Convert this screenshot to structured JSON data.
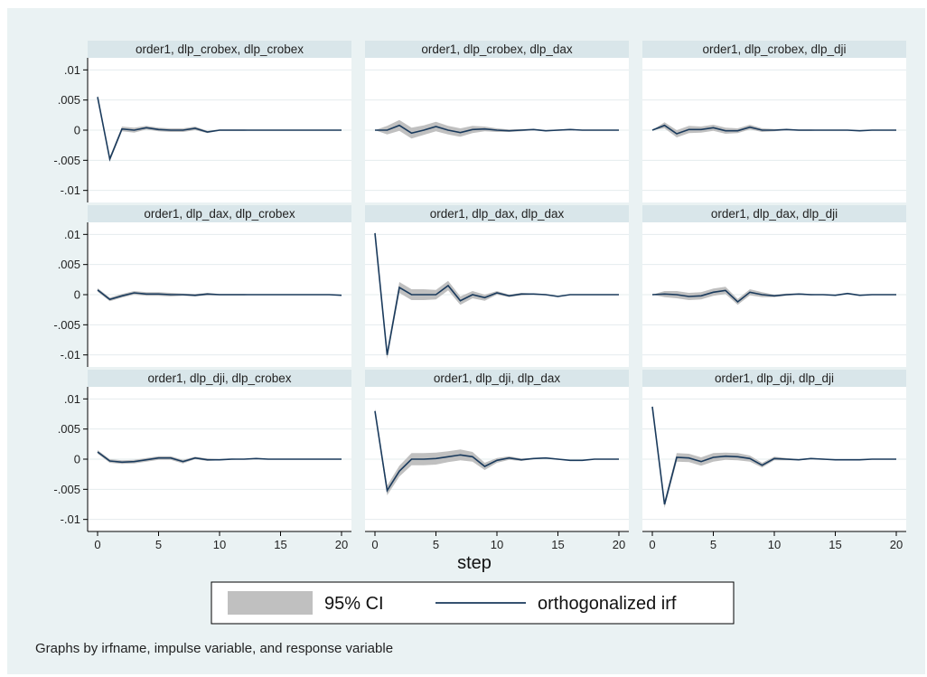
{
  "chart_data": {
    "type": "line",
    "layout": "3x3 panels",
    "x_axis_title": "step",
    "x_ticks": [
      0,
      5,
      10,
      15,
      20
    ],
    "xlim": [
      0,
      20
    ],
    "y_ticks": [
      0.01,
      0.005,
      0,
      -0.005,
      -0.01
    ],
    "y_tick_labels": [
      ".01",
      ".005",
      "0",
      "-.005",
      "-.01"
    ],
    "ylim": [
      -0.012,
      0.012
    ],
    "legend": {
      "placement": "bottom",
      "items": [
        "95% CI",
        "orthogonalized irf"
      ]
    },
    "note": "Graphs by irfname, impulse variable, and response variable",
    "colors": {
      "background": "#eaf2f3",
      "panel_header": "#d9e6ea",
      "line": "#1a3a5c",
      "ci": "#c0c0c0",
      "grid": "#e4ecee"
    },
    "panels": [
      {
        "title": "order1, dlp_crobex, dlp_crobex",
        "irf": [
          0.0055,
          -0.0048,
          0.0002,
          0.0,
          0.0004,
          0.0001,
          0.0,
          0.0,
          0.0003,
          -0.0003,
          0.0,
          0,
          0,
          0,
          0,
          0,
          0,
          0,
          0,
          0,
          0
        ],
        "ci_hw": [
          0.0003,
          0.0004,
          0.0004,
          0.0004,
          0.0003,
          0.0003,
          0.0003,
          0.0003,
          0.0003,
          0.0002,
          0.0001,
          0.0001,
          0.0001,
          0,
          0,
          0,
          0,
          0,
          0,
          0,
          0
        ]
      },
      {
        "title": "order1, dlp_crobex, dlp_dax",
        "irf": [
          0.0,
          0.0,
          0.0008,
          -0.0005,
          0.0,
          0.0006,
          0.0,
          -0.0004,
          0.0001,
          0.0002,
          0.0,
          -0.0001,
          0.0,
          0.0001,
          -0.0001,
          0.0,
          0.0001,
          0.0,
          0.0,
          0.0,
          0.0
        ],
        "ci_hw": [
          0.0,
          0.0007,
          0.0009,
          0.0009,
          0.0008,
          0.0008,
          0.0007,
          0.0007,
          0.0006,
          0.0004,
          0.0003,
          0.0002,
          0.0002,
          0.0001,
          0.0001,
          0.0001,
          0.0001,
          0,
          0,
          0,
          0
        ]
      },
      {
        "title": "order1, dlp_crobex, dlp_dji",
        "irf": [
          0.0,
          0.0008,
          -0.0006,
          0.0001,
          0.0001,
          0.0004,
          -0.0001,
          -0.0001,
          0.0005,
          0.0,
          0.0,
          0.0001,
          0.0,
          0.0,
          0.0,
          0.0,
          0.0,
          -0.0001,
          0.0,
          0.0,
          0.0
        ],
        "ci_hw": [
          0.0,
          0.0005,
          0.0006,
          0.0006,
          0.0005,
          0.0005,
          0.0005,
          0.0004,
          0.0004,
          0.0003,
          0.0002,
          0.0001,
          0.0001,
          0.0001,
          0,
          0,
          0,
          0,
          0,
          0,
          0
        ]
      },
      {
        "title": "order1, dlp_dax, dlp_crobex",
        "irf": [
          0.0008,
          -0.0008,
          -0.0002,
          0.0003,
          0.0001,
          0.0001,
          0.0,
          0.0,
          -0.0001,
          0.0001,
          0.0,
          0.0,
          0.0,
          0.0,
          0.0,
          0.0,
          0.0,
          0.0,
          0.0,
          0.0,
          -0.0001
        ],
        "ci_hw": [
          0.0003,
          0.0003,
          0.0003,
          0.0003,
          0.0003,
          0.0003,
          0.0003,
          0.0002,
          0.0002,
          0.0002,
          0.0001,
          0.0001,
          0.0001,
          0,
          0,
          0,
          0,
          0,
          0,
          0,
          0
        ]
      },
      {
        "title": "order1, dlp_dax, dlp_dax",
        "irf": [
          0.0102,
          -0.01,
          0.0012,
          0.0,
          0.0,
          0.0,
          0.0015,
          -0.001,
          0.0,
          -0.0005,
          0.0003,
          -0.0002,
          0.0001,
          0.0001,
          0.0,
          -0.0003,
          0.0,
          0.0,
          0.0,
          0.0,
          0.0
        ],
        "ci_hw": [
          0.0004,
          0.0007,
          0.0009,
          0.0009,
          0.0009,
          0.0008,
          0.0008,
          0.0007,
          0.0006,
          0.0005,
          0.0003,
          0.0002,
          0.0002,
          0.0001,
          0.0001,
          0.0001,
          0,
          0,
          0,
          0,
          0
        ]
      },
      {
        "title": "order1, dlp_dax, dlp_dji",
        "irf": [
          0.0,
          0.0001,
          0.0,
          -0.0003,
          -0.0002,
          0.0004,
          0.0007,
          -0.0012,
          0.0004,
          0.0,
          -0.0002,
          0.0,
          0.0001,
          0.0,
          0.0,
          -0.0001,
          0.0002,
          -0.0001,
          0.0,
          0.0,
          0.0
        ],
        "ci_hw": [
          0.0,
          0.0005,
          0.0006,
          0.0006,
          0.0006,
          0.0006,
          0.0006,
          0.0005,
          0.0005,
          0.0004,
          0.0002,
          0.0002,
          0.0001,
          0.0001,
          0,
          0,
          0,
          0,
          0,
          0,
          0
        ]
      },
      {
        "title": "order1, dlp_dji, dlp_crobex",
        "irf": [
          0.0012,
          -0.0003,
          -0.0005,
          -0.0004,
          -0.0001,
          0.0002,
          0.0002,
          -0.0004,
          0.0002,
          -0.0001,
          -0.0001,
          0.0,
          0.0,
          0.0001,
          0.0,
          0.0,
          0.0,
          0.0,
          0.0,
          0.0,
          0.0
        ],
        "ci_hw": [
          0.0003,
          0.0003,
          0.0003,
          0.0003,
          0.0003,
          0.0003,
          0.0003,
          0.0003,
          0.0002,
          0.0002,
          0.0001,
          0.0001,
          0,
          0,
          0,
          0,
          0,
          0,
          0,
          0,
          0
        ]
      },
      {
        "title": "order1, dlp_dji, dlp_dax",
        "irf": [
          0.008,
          -0.0052,
          -0.002,
          0.0,
          0.0,
          0.0001,
          0.0004,
          0.0007,
          0.0004,
          -0.0012,
          -0.0002,
          0.0002,
          -0.0001,
          0.0001,
          0.0002,
          0.0,
          -0.0002,
          -0.0002,
          0.0,
          0.0,
          0.0
        ],
        "ci_hw": [
          0.0004,
          0.0008,
          0.0009,
          0.001,
          0.001,
          0.001,
          0.0009,
          0.0009,
          0.0008,
          0.0006,
          0.0004,
          0.0003,
          0.0002,
          0.0001,
          0.0001,
          0.0001,
          0,
          0,
          0,
          0,
          0
        ]
      },
      {
        "title": "order1, dlp_dji, dlp_dji",
        "irf": [
          0.0087,
          -0.0075,
          0.0003,
          0.0002,
          -0.0004,
          0.0003,
          0.0005,
          0.0004,
          0.0001,
          -0.001,
          0.0001,
          0.0,
          -0.0001,
          0.0001,
          0.0,
          -0.0001,
          -0.0001,
          -0.0001,
          0.0,
          0.0,
          0.0
        ],
        "ci_hw": [
          0.0003,
          0.0006,
          0.0007,
          0.0007,
          0.0007,
          0.0007,
          0.0006,
          0.0006,
          0.0005,
          0.0004,
          0.0003,
          0.0002,
          0.0001,
          0.0001,
          0.0001,
          0,
          0,
          0,
          0,
          0,
          0
        ]
      }
    ]
  }
}
